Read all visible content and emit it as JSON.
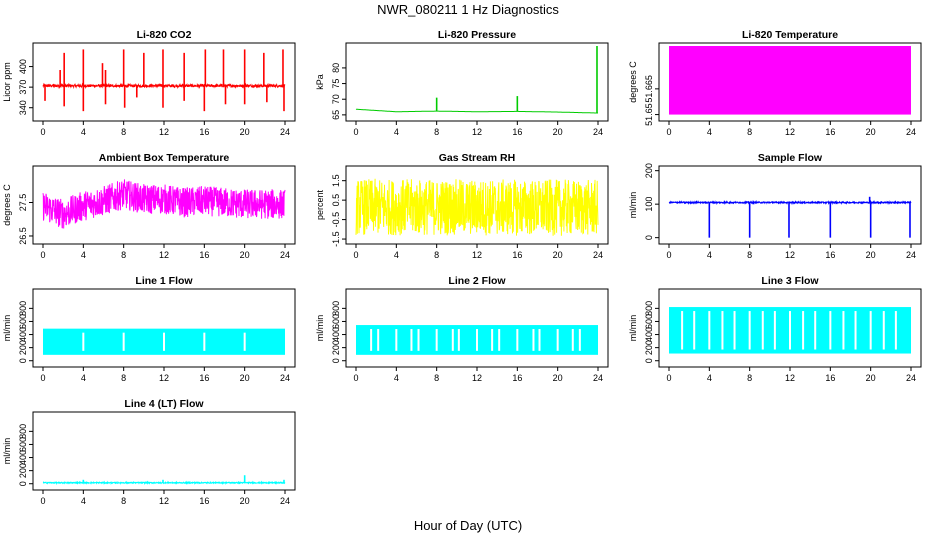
{
  "figure": {
    "title": "NWR_080211  1 Hz Diagnostics",
    "xlabel": "Hour of Day (UTC)"
  },
  "chart_data": [
    {
      "type": "line",
      "title": "Li-820 CO2",
      "ylabel": "Licor ppm",
      "color": "#ff0000",
      "xlim": [
        0,
        24
      ],
      "ylim": [
        325,
        430
      ],
      "xticks": [
        0,
        4,
        8,
        12,
        16,
        20,
        24
      ],
      "yticks": [
        340,
        370,
        400
      ],
      "baseline": 372,
      "noise": 2,
      "spikes_up": [
        [
          1.7,
          395
        ],
        [
          2.1,
          420
        ],
        [
          4.0,
          425
        ],
        [
          5.9,
          405
        ],
        [
          6.2,
          395
        ],
        [
          8.0,
          425
        ],
        [
          10.0,
          420
        ],
        [
          11.9,
          425
        ],
        [
          14.0,
          420
        ],
        [
          16.1,
          425
        ],
        [
          17.9,
          425
        ],
        [
          20.0,
          425
        ],
        [
          21.9,
          420
        ],
        [
          23.8,
          425
        ]
      ],
      "spikes_down": [
        [
          0.2,
          350
        ],
        [
          2.1,
          342
        ],
        [
          4.0,
          335
        ],
        [
          6.2,
          345
        ],
        [
          8.1,
          340
        ],
        [
          9.3,
          355
        ],
        [
          11.9,
          340
        ],
        [
          14.0,
          350
        ],
        [
          16.0,
          335
        ],
        [
          18.1,
          345
        ],
        [
          20.0,
          345
        ],
        [
          22.2,
          348
        ],
        [
          23.9,
          335
        ]
      ]
    },
    {
      "type": "line",
      "title": "Li-820 Pressure",
      "ylabel": "kPa",
      "color": "#00cc00",
      "xlim": [
        0,
        24
      ],
      "ylim": [
        64,
        87
      ],
      "xticks": [
        0,
        4,
        8,
        12,
        16,
        20,
        24
      ],
      "yticks": [
        65,
        70,
        75,
        80
      ],
      "series": [
        {
          "x": [
            0,
            4,
            8,
            12,
            16,
            20,
            23.8
          ],
          "y": [
            66.8,
            66.0,
            66.2,
            66.0,
            66.1,
            65.9,
            65.6
          ]
        }
      ],
      "spikes_up": [
        [
          8.0,
          70.5
        ],
        [
          16.0,
          71
        ],
        [
          23.9,
          87
        ]
      ]
    },
    {
      "type": "area",
      "title": "Li-820 Temperature",
      "ylabel": "degrees C",
      "color": "#ff00ff",
      "xlim": [
        0,
        24
      ],
      "ylim": [
        51.648,
        51.69
      ],
      "xticks": [
        0,
        4,
        8,
        12,
        16,
        20,
        24
      ],
      "yticks": [
        51.65,
        51.665
      ],
      "band": [
        51.65,
        51.69
      ]
    },
    {
      "type": "line",
      "title": "Ambient Box Temperature",
      "ylabel": "degrees C",
      "color": "#ff00ff",
      "xlim": [
        0,
        24
      ],
      "ylim": [
        26.35,
        28.5
      ],
      "xticks": [
        0,
        4,
        8,
        12,
        16,
        20,
        24
      ],
      "yticks": [
        26.5,
        27.5
      ],
      "series": [
        {
          "x": [
            0,
            2,
            4,
            6,
            8,
            10,
            12,
            14,
            16,
            18,
            20,
            22,
            24
          ],
          "y": [
            27.4,
            27.15,
            27.4,
            27.55,
            27.75,
            27.6,
            27.6,
            27.5,
            27.55,
            27.5,
            27.45,
            27.45,
            27.45
          ]
        }
      ],
      "noise": 0.45
    },
    {
      "type": "line",
      "title": "Gas Stream RH",
      "ylabel": "percent",
      "color": "#ffff00",
      "xlim": [
        0,
        24
      ],
      "ylim": [
        -1.6,
        2.1
      ],
      "xticks": [
        0,
        4,
        8,
        12,
        16,
        20,
        24
      ],
      "yticks": [
        -1.5,
        -0.5,
        0.5,
        1.5
      ],
      "series": [
        {
          "x": [
            0,
            24
          ],
          "y": [
            0.15,
            0.1
          ]
        }
      ],
      "noise": 1.45
    },
    {
      "type": "line",
      "title": "Sample Flow",
      "ylabel": "ml/min",
      "color": "#0000ff",
      "xlim": [
        0,
        24
      ],
      "ylim": [
        -10,
        205
      ],
      "xticks": [
        0,
        4,
        8,
        12,
        16,
        20,
        24
      ],
      "yticks": [
        0,
        100,
        200
      ],
      "baseline": 105,
      "noise": 2,
      "spikes_down": [
        [
          4.0,
          0
        ],
        [
          8.0,
          0
        ],
        [
          11.9,
          0
        ],
        [
          16.0,
          0
        ],
        [
          20.0,
          0
        ],
        [
          23.9,
          0
        ]
      ],
      "spikes_up": [
        [
          19.9,
          122
        ]
      ]
    },
    {
      "type": "area",
      "title": "Line 1 Flow",
      "ylabel": "ml/min",
      "color": "#00ffff",
      "xlim": [
        0,
        24
      ],
      "ylim": [
        -50,
        1050
      ],
      "xticks": [
        0,
        4,
        8,
        12,
        16,
        20,
        24
      ],
      "yticks": [
        0,
        200,
        400,
        600,
        800
      ],
      "band": [
        90,
        490
      ],
      "gaps": [
        4.0,
        8.0,
        12.0,
        16.0,
        20.0
      ]
    },
    {
      "type": "area",
      "title": "Line 2 Flow",
      "ylabel": "ml/min",
      "color": "#00ffff",
      "xlim": [
        0,
        24
      ],
      "ylim": [
        -50,
        1050
      ],
      "xticks": [
        0,
        4,
        8,
        12,
        16,
        20,
        24
      ],
      "yticks": [
        0,
        200,
        400,
        600,
        800
      ],
      "band": [
        90,
        545
      ],
      "gaps": [
        1.5,
        2.2,
        4.0,
        5.5,
        6.2,
        8.0,
        9.6,
        10.2,
        12.0,
        13.5,
        14.2,
        16.0,
        17.6,
        18.2,
        20.0,
        21.5,
        22.2
      ]
    },
    {
      "type": "area",
      "title": "Line 3 Flow",
      "ylabel": "ml/min",
      "color": "#00ffff",
      "xlim": [
        0,
        24
      ],
      "ylim": [
        -50,
        1050
      ],
      "xticks": [
        0,
        4,
        8,
        12,
        16,
        20,
        24
      ],
      "yticks": [
        0,
        200,
        400,
        600,
        800
      ],
      "band": [
        110,
        820
      ],
      "gaps": [
        1.3,
        2.5,
        4.0,
        5.3,
        6.5,
        8.0,
        9.3,
        10.5,
        12.0,
        13.3,
        14.5,
        16.0,
        17.3,
        18.5,
        20.0,
        21.3,
        22.5
      ]
    },
    {
      "type": "line",
      "title": "Line 4 (LT) Flow",
      "ylabel": "ml/min",
      "color": "#00ffff",
      "xlim": [
        0,
        24
      ],
      "ylim": [
        -50,
        1050
      ],
      "xticks": [
        0,
        4,
        8,
        12,
        16,
        20,
        24
      ],
      "yticks": [
        0,
        200,
        400,
        600,
        800
      ],
      "baseline": 15,
      "noise": 8,
      "spikes_up": [
        [
          4.0,
          60
        ],
        [
          11.9,
          60
        ],
        [
          20.0,
          130
        ],
        [
          23.9,
          60
        ]
      ]
    }
  ]
}
